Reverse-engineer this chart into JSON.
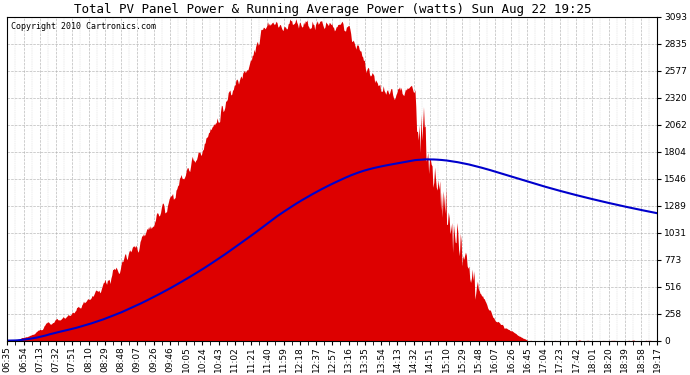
{
  "title": "Total PV Panel Power & Running Average Power (watts) Sun Aug 22 19:25",
  "copyright": "Copyright 2010 Cartronics.com",
  "y_ticks": [
    0.0,
    257.7,
    515.5,
    773.2,
    1031.0,
    1288.7,
    1546.5,
    1804.2,
    2062.0,
    2319.7,
    2577.4,
    2835.2,
    3092.9
  ],
  "y_max": 3092.9,
  "y_min": 0.0,
  "fill_color": "#dd0000",
  "avg_line_color": "#0000cc",
  "background_color": "#ffffff",
  "plot_bg_color": "#ffffff",
  "grid_color": "#aaaaaa",
  "border_color": "#000000",
  "x_labels": [
    "06:35",
    "06:54",
    "07:13",
    "07:32",
    "07:51",
    "08:10",
    "08:29",
    "08:48",
    "09:07",
    "09:26",
    "09:46",
    "10:05",
    "10:24",
    "10:43",
    "11:02",
    "11:21",
    "11:40",
    "11:59",
    "12:18",
    "12:37",
    "12:57",
    "13:16",
    "13:35",
    "13:54",
    "14:13",
    "14:32",
    "14:51",
    "15:10",
    "15:29",
    "15:48",
    "16:07",
    "16:26",
    "16:45",
    "17:04",
    "17:23",
    "17:42",
    "18:01",
    "18:20",
    "18:39",
    "18:58",
    "19:17"
  ],
  "num_points": 760,
  "title_fontsize": 9,
  "copyright_fontsize": 6,
  "tick_fontsize": 6.5
}
